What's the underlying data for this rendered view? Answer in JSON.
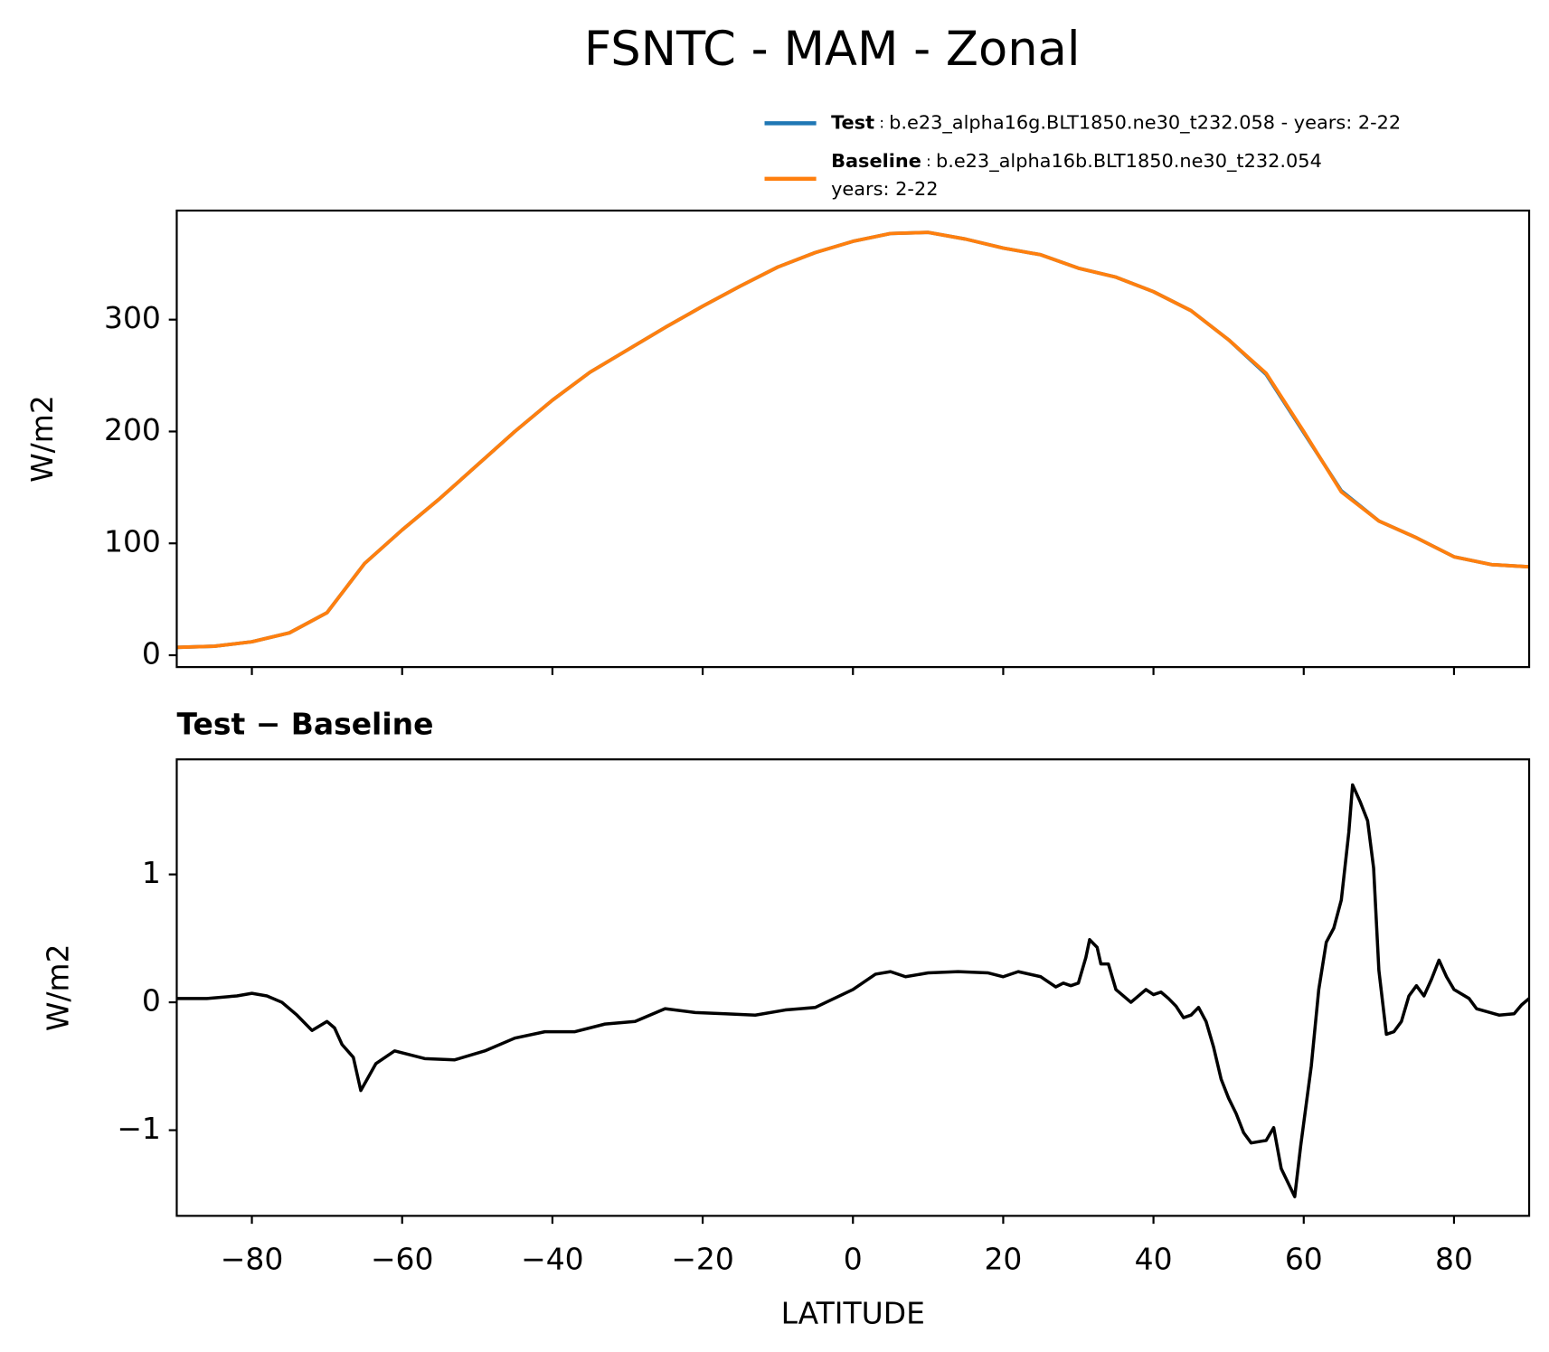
{
  "title": "FSNTC - MAM - Zonal",
  "chart_data": [
    {
      "type": "line",
      "ylabel": "W/m2",
      "x": [
        -90,
        -85,
        -80,
        -75,
        -70,
        -65,
        -60,
        -55,
        -50,
        -45,
        -40,
        -35,
        -30,
        -25,
        -20,
        -15,
        -10,
        -5,
        0,
        5,
        10,
        15,
        20,
        25,
        30,
        35,
        40,
        45,
        50,
        55,
        60,
        65,
        70,
        75,
        80,
        85,
        90
      ],
      "series": [
        {
          "name": "Test",
          "legend_text": [
            "b.e23_alpha16g.BLT1850.ne30_t232.058 - years: 2-22"
          ],
          "color": "#1f77b4",
          "values": [
            7,
            8,
            12,
            20,
            38,
            82,
            112,
            140,
            170,
            200,
            228,
            253,
            273,
            293,
            312,
            330,
            347,
            360,
            370,
            377,
            378,
            372,
            364,
            358,
            346,
            338,
            325,
            308,
            282,
            251,
            199,
            147,
            120,
            105,
            88,
            81,
            79
          ]
        },
        {
          "name": "Baseline",
          "legend_text": [
            "b.e23_alpha16b.BLT1850.ne30_t232.054",
            "years: 2-22"
          ],
          "color": "#ff7f0e",
          "values": [
            7,
            8,
            12,
            20,
            38,
            82,
            112,
            140,
            170,
            200,
            228,
            253,
            273,
            293,
            312,
            330,
            347,
            360,
            370,
            377,
            378,
            372,
            364,
            358,
            346,
            338,
            325,
            308,
            282,
            252,
            200,
            146,
            120,
            105,
            88,
            81,
            79
          ]
        }
      ],
      "xlim": [
        -90,
        90
      ],
      "xticks": [
        -80,
        -60,
        -40,
        -20,
        0,
        20,
        40,
        60,
        80
      ],
      "ylim": [
        -10.6,
        397.5
      ],
      "yticks": [
        0,
        100,
        200,
        300
      ]
    },
    {
      "type": "line",
      "title": "Test − Baseline",
      "ylabel": "W/m2",
      "xlabel": "LATITUDE",
      "x": [
        -90,
        -86,
        -82,
        -80,
        -78,
        -76,
        -74,
        -72,
        -70,
        -69,
        -68,
        -66.5,
        -65.5,
        -63.5,
        -61,
        -57,
        -53,
        -49,
        -45,
        -41,
        -37,
        -33,
        -29,
        -25,
        -21,
        -17,
        -13,
        -9,
        -5,
        0,
        3,
        5,
        7,
        10,
        14,
        18,
        20,
        22,
        25,
        27,
        28,
        29,
        30,
        31,
        31.5,
        32.5,
        33,
        34,
        35,
        37,
        39,
        40,
        41,
        42,
        43,
        44,
        45,
        46,
        47,
        48,
        49,
        50,
        51,
        52,
        53,
        55,
        56,
        57,
        58.8,
        59.6,
        61,
        62,
        63,
        64,
        65,
        66,
        66.5,
        67.5,
        68.5,
        69.3,
        70,
        71,
        72,
        73,
        74,
        75,
        76,
        77,
        78,
        79,
        80,
        82,
        83,
        86,
        88,
        89,
        90
      ],
      "series": [
        {
          "name": "Test − Baseline",
          "color": "#000000",
          "values": [
            0.03,
            0.03,
            0.05,
            0.07,
            0.05,
            0.0,
            -0.1,
            -0.22,
            -0.15,
            -0.2,
            -0.33,
            -0.43,
            -0.69,
            -0.48,
            -0.38,
            -0.44,
            -0.45,
            -0.38,
            -0.28,
            -0.23,
            -0.23,
            -0.17,
            -0.15,
            -0.05,
            -0.08,
            -0.09,
            -0.1,
            -0.06,
            -0.04,
            0.1,
            0.22,
            0.24,
            0.2,
            0.23,
            0.24,
            0.23,
            0.2,
            0.24,
            0.2,
            0.12,
            0.15,
            0.13,
            0.15,
            0.35,
            0.49,
            0.43,
            0.3,
            0.3,
            0.1,
            0.0,
            0.1,
            0.06,
            0.08,
            0.03,
            -0.03,
            -0.12,
            -0.1,
            -0.04,
            -0.15,
            -0.35,
            -0.6,
            -0.75,
            -0.87,
            -1.02,
            -1.1,
            -1.08,
            -0.98,
            -1.3,
            -1.52,
            -1.12,
            -0.5,
            0.1,
            0.47,
            0.58,
            0.8,
            1.33,
            1.7,
            1.57,
            1.42,
            1.05,
            0.25,
            -0.25,
            -0.23,
            -0.15,
            0.05,
            0.13,
            0.05,
            0.18,
            0.33,
            0.2,
            0.1,
            0.03,
            -0.05,
            -0.1,
            -0.09,
            -0.02,
            0.03
          ]
        }
      ],
      "xlim": [
        -90,
        90
      ],
      "xticks": [
        {
          "value": -80,
          "label": "−80"
        },
        {
          "value": -60,
          "label": "−60"
        },
        {
          "value": -40,
          "label": "−40"
        },
        {
          "value": -20,
          "label": "−20"
        },
        0,
        20,
        40,
        60,
        80
      ],
      "ylim": [
        -1.67,
        1.9
      ],
      "yticks": [
        {
          "value": -1,
          "label": "−1"
        },
        0,
        1
      ]
    }
  ]
}
